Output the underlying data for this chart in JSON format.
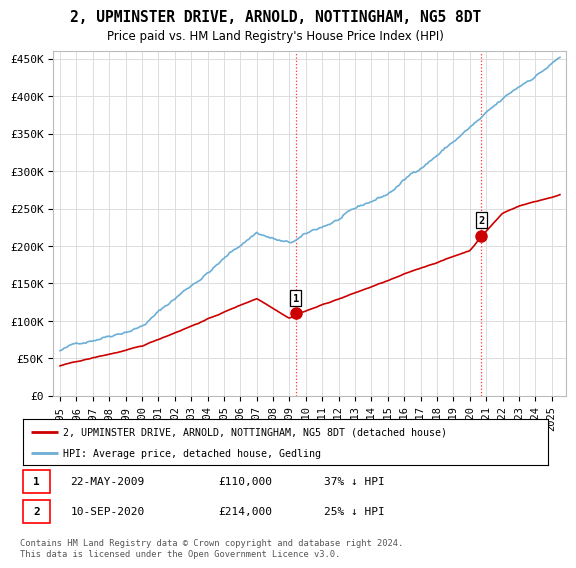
{
  "title": "2, UPMINSTER DRIVE, ARNOLD, NOTTINGHAM, NG5 8DT",
  "subtitle": "Price paid vs. HM Land Registry's House Price Index (HPI)",
  "ylabel_ticks": [
    "£0",
    "£50K",
    "£100K",
    "£150K",
    "£200K",
    "£250K",
    "£300K",
    "£350K",
    "£400K",
    "£450K"
  ],
  "ytick_values": [
    0,
    50000,
    100000,
    150000,
    200000,
    250000,
    300000,
    350000,
    400000,
    450000
  ],
  "ylim": [
    0,
    460000
  ],
  "hpi_color": "#6baed6",
  "price_color": "#cc0000",
  "marker_color": "#cc0000",
  "transaction1_year": 2009.38,
  "transaction1_price": 110000,
  "transaction2_year": 2020.7,
  "transaction2_price": 214000,
  "legend_line1": "2, UPMINSTER DRIVE, ARNOLD, NOTTINGHAM, NG5 8DT (detached house)",
  "legend_line2": "HPI: Average price, detached house, Gedling",
  "table_row1_num": "1",
  "table_row1_date": "22-MAY-2009",
  "table_row1_price": "£110,000",
  "table_row1_hpi": "37% ↓ HPI",
  "table_row2_num": "2",
  "table_row2_date": "10-SEP-2020",
  "table_row2_price": "£214,000",
  "table_row2_hpi": "25% ↓ HPI",
  "footer": "Contains HM Land Registry data © Crown copyright and database right 2024.\nThis data is licensed under the Open Government Licence v3.0.",
  "grid_color": "#dddddd"
}
